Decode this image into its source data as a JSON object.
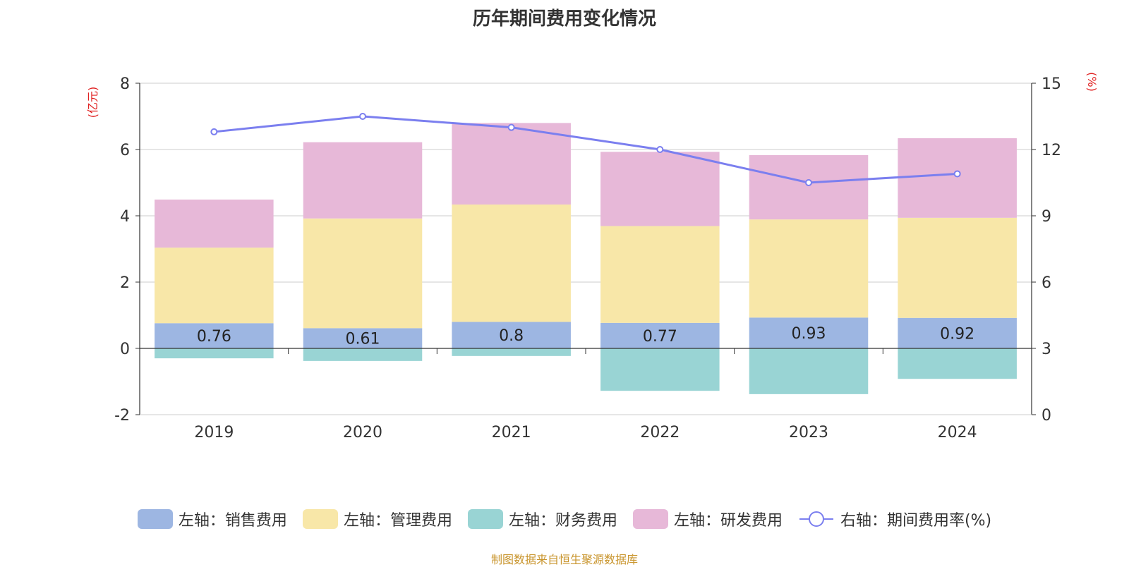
{
  "chart_data": {
    "type": "bar",
    "title": "历年期间费用变化情况",
    "categories": [
      "2019",
      "2020",
      "2021",
      "2022",
      "2023",
      "2024"
    ],
    "left_axis": {
      "unit_label": "(亿元)",
      "ylim": [
        -2,
        8
      ],
      "ticks": [
        -2,
        0,
        2,
        4,
        6,
        8
      ]
    },
    "right_axis": {
      "unit_label": "(%)",
      "ylim": [
        0,
        15
      ],
      "ticks": [
        0,
        3,
        6,
        9,
        12,
        15
      ]
    },
    "series": [
      {
        "name": "左轴：销售费用",
        "type": "bar",
        "axis": "left",
        "color": "#9db6e2",
        "values": [
          0.76,
          0.61,
          0.8,
          0.77,
          0.93,
          0.92
        ],
        "show_labels": true
      },
      {
        "name": "左轴：管理费用",
        "type": "bar",
        "axis": "left",
        "color": "#f8e7a8",
        "values": [
          2.28,
          3.31,
          3.54,
          2.92,
          2.96,
          3.02
        ],
        "show_labels": false
      },
      {
        "name": "左轴：财务费用",
        "type": "bar",
        "axis": "left",
        "color": "#99d4d4",
        "values": [
          -0.3,
          -0.38,
          -0.23,
          -1.28,
          -1.38,
          -0.92
        ],
        "show_labels": false
      },
      {
        "name": "左轴：研发费用",
        "type": "bar",
        "axis": "left",
        "color": "#e7b8d8",
        "values": [
          1.45,
          2.3,
          2.46,
          2.24,
          1.94,
          2.4
        ],
        "show_labels": false
      },
      {
        "name": "右轴：期间费用率(%)",
        "type": "line",
        "axis": "right",
        "color": "#7b7fef",
        "values": [
          12.8,
          13.5,
          13.0,
          12.0,
          10.5,
          10.9
        ]
      }
    ],
    "source_note": "制图数据来自恒生聚源数据库",
    "source_color": "#c9952d",
    "axis_label_color": "#e02020"
  }
}
